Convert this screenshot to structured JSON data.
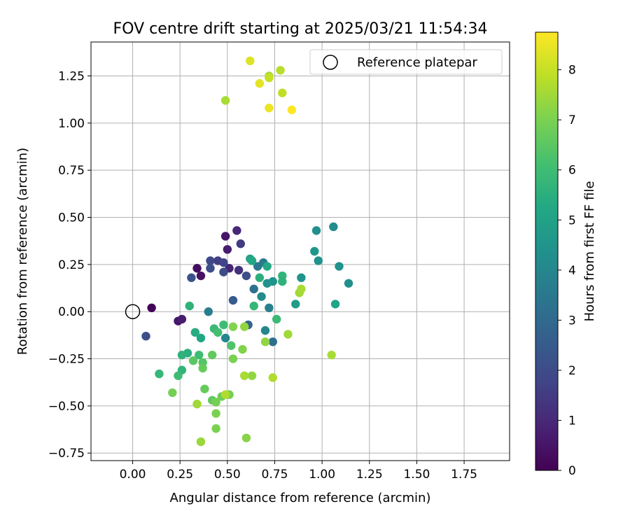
{
  "chart_data": {
    "type": "scatter",
    "title": "FOV centre drift starting at 2025/03/21 11:54:34",
    "xlabel": "Angular distance from reference (arcmin)",
    "ylabel": "Rotation from reference (arcmin)",
    "xlim": [
      -0.22,
      1.99
    ],
    "ylim": [
      -0.79,
      1.43
    ],
    "xticks": [
      0.0,
      0.25,
      0.5,
      0.75,
      1.0,
      1.25,
      1.5,
      1.75
    ],
    "xtick_labels": [
      "0.00",
      "0.25",
      "0.50",
      "0.75",
      "1.00",
      "1.25",
      "1.50",
      "1.75"
    ],
    "yticks": [
      -0.75,
      -0.5,
      -0.25,
      0.0,
      0.25,
      0.5,
      0.75,
      1.0,
      1.25
    ],
    "ytick_labels": [
      "−0.75",
      "−0.50",
      "−0.25",
      "0.00",
      "0.25",
      "0.50",
      "0.75",
      "1.00",
      "1.25"
    ],
    "grid": true,
    "legend_position": "top-right",
    "legend": [
      {
        "label": "Reference platepar",
        "marker": "open-circle",
        "x": 0.0,
        "y": 0.0
      }
    ],
    "colorbar": {
      "label": "Hours from first FF file",
      "min": 0,
      "max": 8.75,
      "ticks": [
        0,
        1,
        2,
        3,
        4,
        5,
        6,
        7,
        8
      ],
      "tick_labels": [
        "0",
        "1",
        "2",
        "3",
        "4",
        "5",
        "6",
        "7",
        "8"
      ],
      "colormap": "viridis"
    },
    "points": [
      {
        "x": 0.1,
        "y": 0.02,
        "t": 0.1
      },
      {
        "x": 0.34,
        "y": 0.23,
        "t": 0.3
      },
      {
        "x": 0.36,
        "y": 0.19,
        "t": 0.4
      },
      {
        "x": 0.49,
        "y": 0.4,
        "t": 0.5
      },
      {
        "x": 0.5,
        "y": 0.33,
        "t": 0.7
      },
      {
        "x": 0.51,
        "y": 0.23,
        "t": 0.9
      },
      {
        "x": 0.24,
        "y": -0.05,
        "t": 0.5
      },
      {
        "x": 0.26,
        "y": -0.04,
        "t": 0.7
      },
      {
        "x": 0.55,
        "y": 0.43,
        "t": 1.0
      },
      {
        "x": 0.56,
        "y": 0.22,
        "t": 1.2
      },
      {
        "x": 0.57,
        "y": 0.36,
        "t": 1.5
      },
      {
        "x": 0.45,
        "y": 0.27,
        "t": 1.6
      },
      {
        "x": 0.48,
        "y": 0.26,
        "t": 1.8
      },
      {
        "x": 0.41,
        "y": 0.27,
        "t": 1.9
      },
      {
        "x": 0.41,
        "y": 0.23,
        "t": 2.0
      },
      {
        "x": 0.48,
        "y": 0.21,
        "t": 2.0
      },
      {
        "x": 0.07,
        "y": -0.13,
        "t": 2.1
      },
      {
        "x": 0.31,
        "y": 0.18,
        "t": 2.2
      },
      {
        "x": 0.6,
        "y": 0.19,
        "t": 2.1
      },
      {
        "x": 0.53,
        "y": 0.06,
        "t": 2.5
      },
      {
        "x": 0.61,
        "y": -0.07,
        "t": 2.8
      },
      {
        "x": 0.74,
        "y": -0.16,
        "t": 3.2
      },
      {
        "x": 0.64,
        "y": 0.12,
        "t": 3.3
      },
      {
        "x": 0.66,
        "y": 0.24,
        "t": 3.5
      },
      {
        "x": 0.69,
        "y": 0.26,
        "t": 3.6
      },
      {
        "x": 0.72,
        "y": 0.02,
        "t": 3.8
      },
      {
        "x": 0.4,
        "y": 0.0,
        "t": 3.7
      },
      {
        "x": 0.49,
        "y": -0.14,
        "t": 4.0
      },
      {
        "x": 0.68,
        "y": 0.08,
        "t": 4.2
      },
      {
        "x": 0.7,
        "y": -0.1,
        "t": 4.0
      },
      {
        "x": 0.71,
        "y": 0.15,
        "t": 4.4
      },
      {
        "x": 0.74,
        "y": 0.16,
        "t": 4.5
      },
      {
        "x": 0.97,
        "y": 0.43,
        "t": 4.3
      },
      {
        "x": 0.98,
        "y": 0.27,
        "t": 4.4
      },
      {
        "x": 1.06,
        "y": 0.45,
        "t": 4.2
      },
      {
        "x": 1.09,
        "y": 0.24,
        "t": 4.4
      },
      {
        "x": 1.14,
        "y": 0.15,
        "t": 4.3
      },
      {
        "x": 0.89,
        "y": 0.18,
        "t": 4.5
      },
      {
        "x": 0.96,
        "y": 0.32,
        "t": 4.6
      },
      {
        "x": 0.86,
        "y": 0.04,
        "t": 4.8
      },
      {
        "x": 1.07,
        "y": 0.04,
        "t": 5.1
      },
      {
        "x": 0.62,
        "y": 0.28,
        "t": 5.0
      },
      {
        "x": 0.63,
        "y": 0.27,
        "t": 5.2
      },
      {
        "x": 0.71,
        "y": 0.24,
        "t": 5.3
      },
      {
        "x": 0.67,
        "y": 0.18,
        "t": 5.5
      },
      {
        "x": 0.79,
        "y": 0.19,
        "t": 5.7
      },
      {
        "x": 0.79,
        "y": 0.16,
        "t": 5.6
      },
      {
        "x": 0.3,
        "y": 0.03,
        "t": 5.6
      },
      {
        "x": 0.64,
        "y": 0.03,
        "t": 5.8
      },
      {
        "x": 0.76,
        "y": -0.04,
        "t": 5.9
      },
      {
        "x": 0.36,
        "y": -0.14,
        "t": 5.2
      },
      {
        "x": 0.33,
        "y": -0.11,
        "t": 5.4
      },
      {
        "x": 0.29,
        "y": -0.22,
        "t": 5.5
      },
      {
        "x": 0.26,
        "y": -0.23,
        "t": 5.6
      },
      {
        "x": 0.26,
        "y": -0.31,
        "t": 5.7
      },
      {
        "x": 0.14,
        "y": -0.33,
        "t": 5.8
      },
      {
        "x": 0.24,
        "y": -0.34,
        "t": 6.0
      },
      {
        "x": 0.35,
        "y": -0.23,
        "t": 6.0
      },
      {
        "x": 0.43,
        "y": -0.09,
        "t": 5.9
      },
      {
        "x": 0.45,
        "y": -0.11,
        "t": 6.1
      },
      {
        "x": 0.48,
        "y": -0.07,
        "t": 6.0
      },
      {
        "x": 0.52,
        "y": -0.18,
        "t": 6.3
      },
      {
        "x": 0.37,
        "y": -0.27,
        "t": 6.4
      },
      {
        "x": 0.32,
        "y": -0.26,
        "t": 6.5
      },
      {
        "x": 0.42,
        "y": -0.23,
        "t": 6.6
      },
      {
        "x": 0.37,
        "y": -0.3,
        "t": 6.7
      },
      {
        "x": 0.38,
        "y": -0.41,
        "t": 6.7
      },
      {
        "x": 0.42,
        "y": -0.47,
        "t": 6.6
      },
      {
        "x": 0.47,
        "y": -0.45,
        "t": 6.8
      },
      {
        "x": 0.51,
        "y": -0.44,
        "t": 6.9
      },
      {
        "x": 0.44,
        "y": -0.48,
        "t": 6.9
      },
      {
        "x": 0.44,
        "y": -0.54,
        "t": 7.0
      },
      {
        "x": 0.44,
        "y": -0.62,
        "t": 7.0
      },
      {
        "x": 0.21,
        "y": -0.43,
        "t": 6.9
      },
      {
        "x": 0.53,
        "y": -0.25,
        "t": 7.0
      },
      {
        "x": 0.58,
        "y": -0.2,
        "t": 7.1
      },
      {
        "x": 0.53,
        "y": -0.08,
        "t": 7.1
      },
      {
        "x": 0.59,
        "y": -0.08,
        "t": 7.3
      },
      {
        "x": 0.7,
        "y": -0.16,
        "t": 7.3
      },
      {
        "x": 0.82,
        "y": -0.12,
        "t": 7.5
      },
      {
        "x": 0.88,
        "y": 0.1,
        "t": 7.5
      },
      {
        "x": 0.89,
        "y": 0.12,
        "t": 7.6
      },
      {
        "x": 0.63,
        "y": -0.34,
        "t": 7.3
      },
      {
        "x": 0.59,
        "y": -0.34,
        "t": 7.6
      },
      {
        "x": 0.74,
        "y": -0.35,
        "t": 7.7
      },
      {
        "x": 0.6,
        "y": -0.67,
        "t": 7.2
      },
      {
        "x": 0.36,
        "y": -0.69,
        "t": 7.4
      },
      {
        "x": 0.34,
        "y": -0.49,
        "t": 7.5
      },
      {
        "x": 0.49,
        "y": -0.44,
        "t": 7.7
      },
      {
        "x": 1.05,
        "y": -0.23,
        "t": 7.6
      },
      {
        "x": 0.49,
        "y": 1.12,
        "t": 7.6
      },
      {
        "x": 0.72,
        "y": 1.25,
        "t": 7.6
      },
      {
        "x": 0.78,
        "y": 1.28,
        "t": 7.8
      },
      {
        "x": 0.79,
        "y": 1.16,
        "t": 7.9
      },
      {
        "x": 0.72,
        "y": 1.24,
        "t": 8.0
      },
      {
        "x": 0.62,
        "y": 1.33,
        "t": 8.3
      },
      {
        "x": 0.67,
        "y": 1.21,
        "t": 8.4
      },
      {
        "x": 0.72,
        "y": 1.08,
        "t": 8.5
      },
      {
        "x": 0.84,
        "y": 1.07,
        "t": 8.75
      }
    ]
  }
}
